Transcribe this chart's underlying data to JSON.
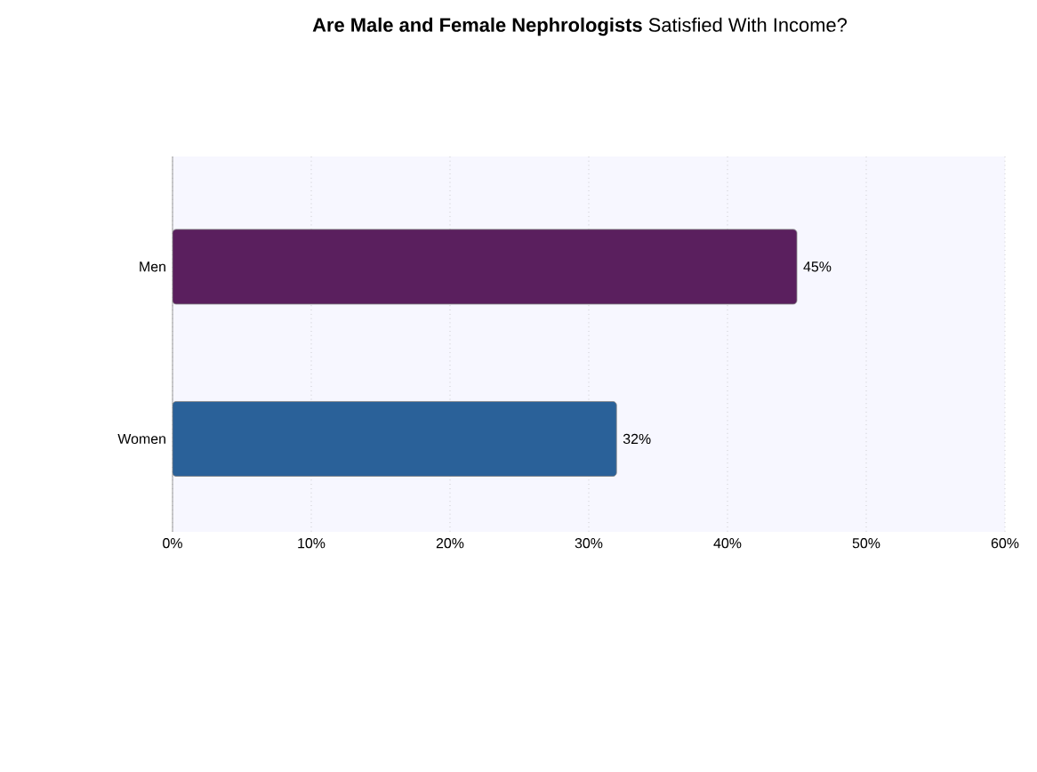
{
  "chart_data": {
    "type": "bar",
    "orientation": "horizontal",
    "title": "**Are Male and Female Nephrologists** Satisfied With Income?",
    "categories": [
      "Men",
      "Women"
    ],
    "values": [
      45,
      32
    ],
    "colors": [
      "#5a1f5e",
      "#2a6199"
    ],
    "value_labels": [
      "45%",
      "32%"
    ],
    "xlim": [
      0,
      60
    ],
    "xticks": [
      {
        "value": 0,
        "label": "0%"
      },
      {
        "value": 10,
        "label": "10%"
      },
      {
        "value": 20,
        "label": "20%"
      },
      {
        "value": 30,
        "label": "30%"
      },
      {
        "value": 40,
        "label": "40%"
      },
      {
        "value": 50,
        "label": "50%"
      },
      {
        "value": 60,
        "label": "60%"
      }
    ],
    "grid": "x"
  }
}
